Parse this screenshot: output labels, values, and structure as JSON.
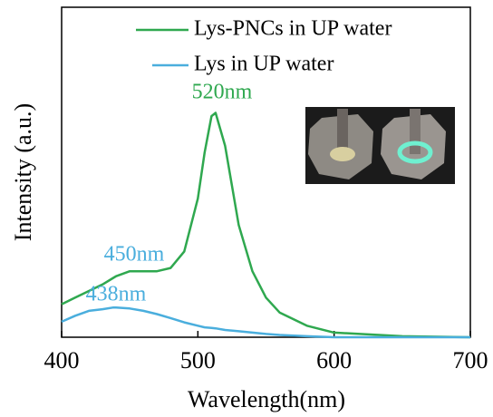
{
  "chart_data": {
    "type": "line",
    "x_label": "Wavelength(nm)",
    "y_label": "Intensity (a.u.)",
    "x": [
      400,
      410,
      420,
      430,
      438,
      440,
      450,
      460,
      470,
      480,
      490,
      500,
      505,
      510,
      513,
      520,
      530,
      540,
      550,
      560,
      580,
      600,
      650,
      700
    ],
    "series": [
      {
        "name": "Lys-PNCs in UP water",
        "color": "#2fa84f",
        "values": [
          0.1,
          0.12,
          0.14,
          0.16,
          0.18,
          0.185,
          0.2,
          0.2,
          0.2,
          0.21,
          0.26,
          0.42,
          0.56,
          0.67,
          0.68,
          0.58,
          0.34,
          0.2,
          0.12,
          0.075,
          0.035,
          0.014,
          0.003,
          0
        ]
      },
      {
        "name": "Lys in UP water",
        "color": "#4aaedd",
        "values": [
          0.047,
          0.065,
          0.08,
          0.085,
          0.09,
          0.09,
          0.087,
          0.08,
          0.07,
          0.058,
          0.045,
          0.035,
          0.03,
          0.028,
          0.027,
          0.022,
          0.018,
          0.014,
          0.01,
          0.007,
          0.003,
          0,
          0,
          0
        ]
      }
    ],
    "annotations": [
      {
        "text": "520nm",
        "color": "#2fa84f"
      },
      {
        "text": "450nm",
        "color": "#4aaedd"
      },
      {
        "text": "438nm",
        "color": "#4aaedd"
      }
    ],
    "xlim": [
      400,
      700
    ],
    "xticks": [
      400,
      500,
      600,
      700
    ],
    "ylim": [
      0,
      1
    ]
  }
}
